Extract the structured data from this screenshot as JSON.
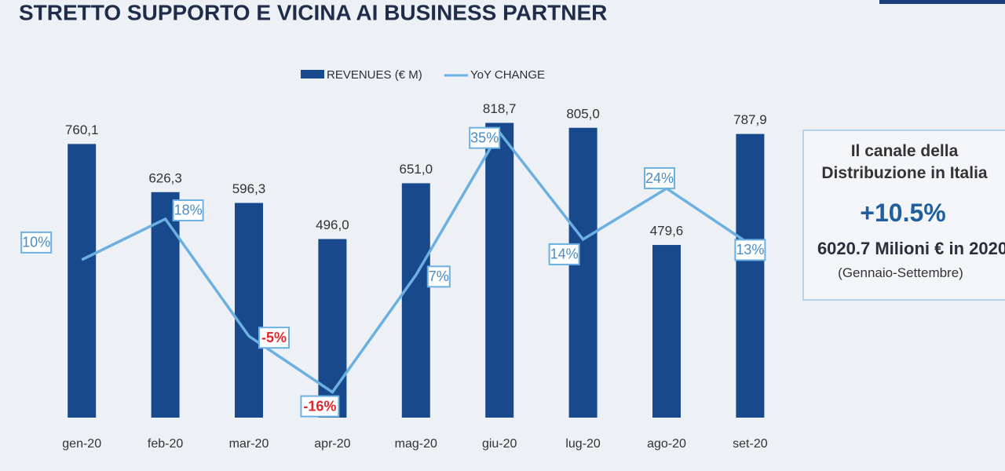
{
  "chart_data": {
    "type": "bar",
    "title": "STRETTO SUPPORTO E VICINA AI BUSINESS PARTNER",
    "categories": [
      "gen-20",
      "feb-20",
      "mar-20",
      "apr-20",
      "mag-20",
      "giu-20",
      "lug-20",
      "ago-20",
      "set-20"
    ],
    "series": [
      {
        "name": "REVENUES (€ M)",
        "type": "bar",
        "color": "#17498c",
        "values": [
          760.1,
          626.3,
          596.3,
          496.0,
          651.0,
          818.7,
          805.0,
          479.6,
          787.9
        ],
        "value_labels": [
          "760,1",
          "626,3",
          "596,3",
          "496,0",
          "651,0",
          "818,7",
          "805,0",
          "479,6",
          "787,9"
        ]
      },
      {
        "name": "YoY CHANGE",
        "type": "line",
        "axis": "y2",
        "color": "#6cb0e2",
        "values": [
          10,
          18,
          -5,
          -16,
          7,
          35,
          14,
          24,
          13
        ],
        "value_labels": [
          "10%",
          "18%",
          "-5%",
          "-16%",
          "7%",
          "35%",
          "14%",
          "24%",
          "13%"
        ]
      }
    ],
    "ylim": [
      0,
      1160
    ],
    "y2lim": [
      -21,
      61
    ],
    "negative_color": "#e0262a",
    "legend": "top"
  },
  "summary": {
    "heading": "Il canale della Distribuzione in Italia",
    "growth": "+10.5%",
    "total": "6020.7 Milioni € in 2020",
    "period": "(Gennaio-Settembre)"
  }
}
